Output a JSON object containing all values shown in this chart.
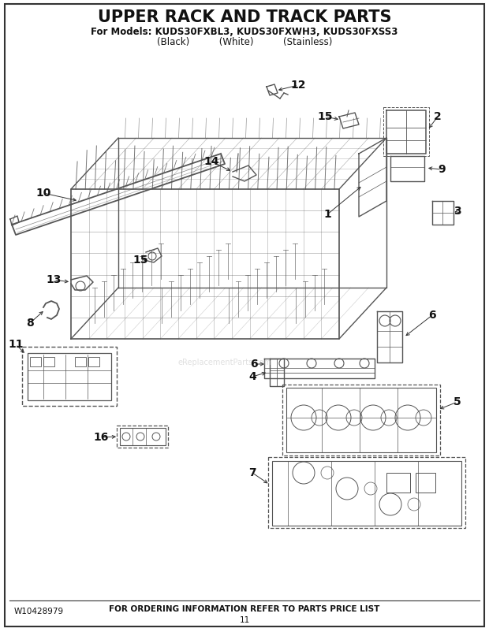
{
  "title": "UPPER RACK AND TRACK PARTS",
  "subtitle_line1": "For Models: KUDS30FXBL3, KUDS30FXWH3, KUDS30FXSS3",
  "subtitle_line2": "(Black)          (White)          (Stainless)",
  "footer_left": "W10428979",
  "footer_center": "FOR ORDERING INFORMATION REFER TO PARTS PRICE LIST",
  "footer_page": "11",
  "bg_color": "#ffffff",
  "basket_color": "#555555",
  "title_fontsize": 15,
  "subtitle_fontsize": 8.5,
  "label_fontsize": 10,
  "footer_fontsize": 7.5
}
